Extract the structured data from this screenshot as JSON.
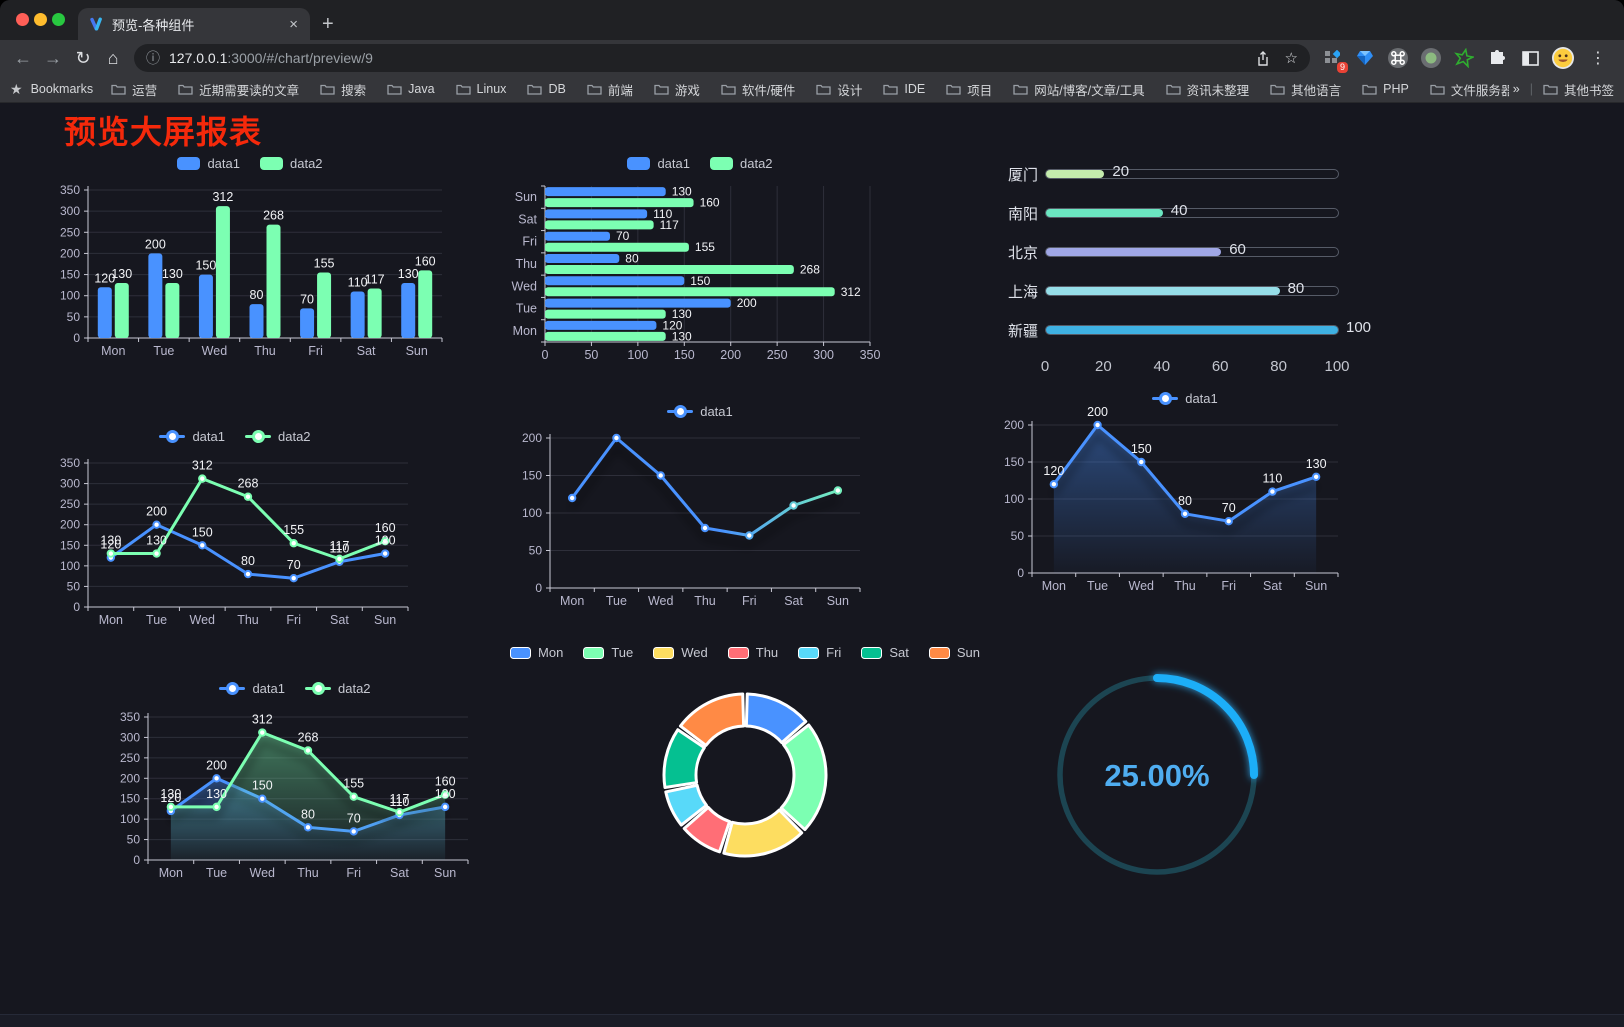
{
  "browser": {
    "tab_title": "预览-各种组件",
    "url_host": "127.0.0.1",
    "url_rest": ":3000/#/chart/preview/9",
    "bookmarks_label": "Bookmarks",
    "bookmarks": [
      "运营",
      "近期需要读的文章",
      "搜索",
      "Java",
      "Linux",
      "DB",
      "前端",
      "游戏",
      "软件/硬件",
      "设计",
      "IDE",
      "项目",
      "网站/博客/文章/工具",
      "资讯未整理",
      "其他语言",
      "PHP",
      "文件服务器"
    ],
    "bookmarks_overflow": "»",
    "other_bookmarks": "其他书签",
    "extension_badge": "9",
    "icons": {
      "back": "←",
      "forward": "→",
      "reload": "↻",
      "home": "⌂",
      "info": "ⓘ",
      "star": "☆",
      "bookmarks_star": "★",
      "menu": "⋮",
      "close": "×",
      "new_tab": "+",
      "separator": "|"
    }
  },
  "page": {
    "title": "预览大屏报表"
  },
  "chart_data": [
    {
      "id": "bar-vertical",
      "type": "bar",
      "categories": [
        "Mon",
        "Tue",
        "Wed",
        "Thu",
        "Fri",
        "Sat",
        "Sun"
      ],
      "series": [
        {
          "name": "data1",
          "color": "#4992ff",
          "values": [
            120,
            200,
            150,
            80,
            70,
            110,
            130
          ]
        },
        {
          "name": "data2",
          "color": "#7cffb2",
          "values": [
            130,
            130,
            312,
            268,
            155,
            117,
            160
          ]
        }
      ],
      "ylim": [
        0,
        350
      ],
      "ytick": 50,
      "labels": true,
      "legend_position": "top",
      "grid": true
    },
    {
      "id": "bar-horizontal",
      "type": "bar-horizontal",
      "categories": [
        "Mon",
        "Tue",
        "Wed",
        "Thu",
        "Fri",
        "Sat",
        "Sun"
      ],
      "display_order_top_to_bottom": [
        "Sun",
        "Sat",
        "Fri",
        "Thu",
        "Wed",
        "Tue",
        "Mon"
      ],
      "series": [
        {
          "name": "data1",
          "color": "#4992ff",
          "values": [
            120,
            200,
            150,
            80,
            70,
            110,
            130
          ]
        },
        {
          "name": "data2",
          "color": "#7cffb2",
          "values": [
            130,
            130,
            312,
            268,
            155,
            117,
            160
          ]
        }
      ],
      "xlim": [
        0,
        350
      ],
      "xtick": 50,
      "labels": true,
      "legend_position": "top",
      "grid": true
    },
    {
      "id": "progress-list",
      "type": "progress",
      "items": [
        {
          "label": "厦门",
          "value": 20,
          "color": "#c4ebad"
        },
        {
          "label": "南阳",
          "value": 40,
          "color": "#6be6c1"
        },
        {
          "label": "北京",
          "value": 60,
          "color": "#a0a7e6"
        },
        {
          "label": "上海",
          "value": 80,
          "color": "#96dee8"
        },
        {
          "label": "新疆",
          "value": 100,
          "color": "#3fb1e3"
        }
      ],
      "xlim": [
        0,
        100
      ],
      "xticks": [
        0,
        20,
        40,
        60,
        80,
        100
      ]
    },
    {
      "id": "line-two-series",
      "type": "line",
      "categories": [
        "Mon",
        "Tue",
        "Wed",
        "Thu",
        "Fri",
        "Sat",
        "Sun"
      ],
      "series": [
        {
          "name": "data1",
          "color": "#4992ff",
          "values": [
            120,
            200,
            150,
            80,
            70,
            110,
            130
          ]
        },
        {
          "name": "data2",
          "color": "#7cffb2",
          "values": [
            130,
            130,
            312,
            268,
            155,
            117,
            160
          ]
        }
      ],
      "ylim": [
        0,
        350
      ],
      "ytick": 50,
      "labels": true,
      "legend_position": "top",
      "grid": true
    },
    {
      "id": "line-gradient",
      "type": "line",
      "categories": [
        "Mon",
        "Tue",
        "Wed",
        "Thu",
        "Fri",
        "Sat",
        "Sun"
      ],
      "series": [
        {
          "name": "data1",
          "color": "#4992ff",
          "color_gradient": [
            "#4992ff",
            "#7cffb2"
          ],
          "values": [
            120,
            200,
            150,
            80,
            70,
            110,
            130
          ]
        }
      ],
      "ylim": [
        0,
        200
      ],
      "ytick": 50,
      "labels": false,
      "shadow": true,
      "legend_position": "top",
      "grid": true
    },
    {
      "id": "area-single",
      "type": "area",
      "categories": [
        "Mon",
        "Tue",
        "Wed",
        "Thu",
        "Fri",
        "Sat",
        "Sun"
      ],
      "series": [
        {
          "name": "data1",
          "color": "#4992ff",
          "area": true,
          "values": [
            120,
            200,
            150,
            80,
            70,
            110,
            130
          ]
        }
      ],
      "ylim": [
        0,
        200
      ],
      "ytick": 50,
      "labels": true,
      "shadow": true,
      "legend_position": "top",
      "grid": true
    },
    {
      "id": "area-two-series",
      "type": "area",
      "categories": [
        "Mon",
        "Tue",
        "Wed",
        "Thu",
        "Fri",
        "Sat",
        "Sun"
      ],
      "series": [
        {
          "name": "data1",
          "color": "#4992ff",
          "area": true,
          "values": [
            120,
            200,
            150,
            80,
            70,
            110,
            130
          ]
        },
        {
          "name": "data2",
          "color": "#7cffb2",
          "area": true,
          "values": [
            130,
            130,
            312,
            268,
            155,
            117,
            160
          ]
        }
      ],
      "ylim": [
        0,
        350
      ],
      "ytick": 50,
      "labels": true,
      "shadow": true,
      "legend_position": "top",
      "grid": true
    },
    {
      "id": "donut",
      "type": "pie",
      "categories": [
        "Mon",
        "Tue",
        "Wed",
        "Thu",
        "Fri",
        "Sat",
        "Sun"
      ],
      "values": [
        120,
        200,
        150,
        80,
        70,
        110,
        130
      ],
      "colors": [
        "#4992ff",
        "#7cffb2",
        "#fddd60",
        "#ff6e76",
        "#58d9f9",
        "#05c091",
        "#ff8a45"
      ],
      "inner_radius_ratio": 0.6,
      "legend_position": "top"
    },
    {
      "id": "gauge",
      "type": "gauge",
      "percent": 25,
      "label": "25.00%",
      "progress_color": "#1faef8",
      "track_color": "#1c4552",
      "text_color": "#4fadf0"
    }
  ]
}
